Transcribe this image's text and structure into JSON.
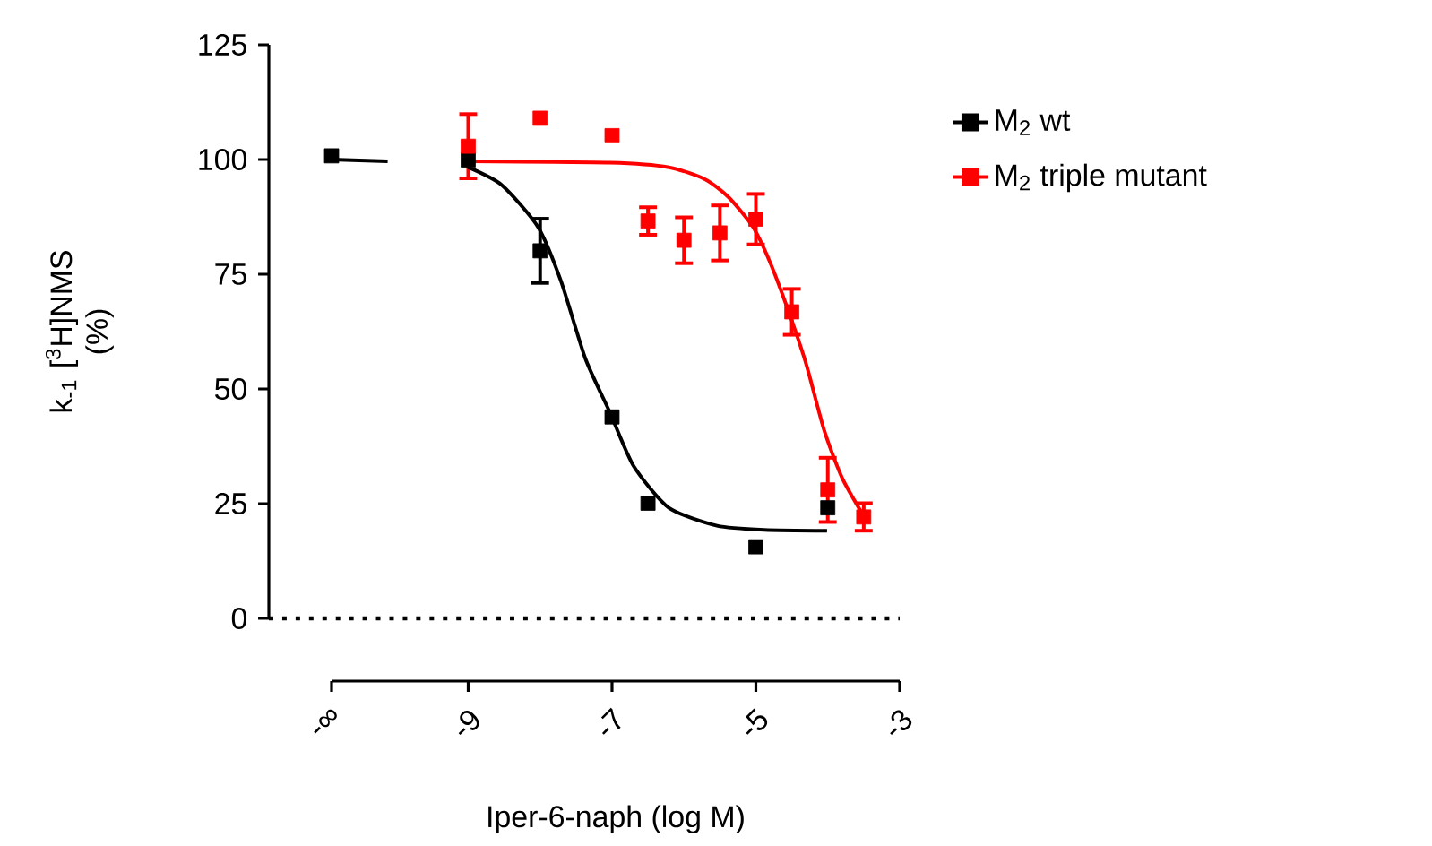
{
  "chart_data": {
    "type": "scatter",
    "xlabel": "Iper-6-naph (log M)",
    "ylabel": "k$_{-1}$ [$^{3}$H]NMS (%)",
    "x": [
      -10.9,
      -9,
      -8,
      -7,
      -6.5,
      -5,
      -4
    ],
    "xlim": [
      -10.9,
      -3
    ],
    "xticks": [
      {
        "value": -10.9,
        "label": "-∞"
      },
      -9,
      -7,
      -5,
      -3
    ],
    "ylim": [
      0,
      125
    ],
    "yticks": [
      0,
      25,
      50,
      75,
      100,
      125
    ],
    "grid": false,
    "legend": "right",
    "marker": "square",
    "series": [
      {
        "name": "M$_{2}$ wt",
        "color": "#000000",
        "values": [
          100.8,
          99.9,
          80.1,
          43.9,
          25.1,
          15.6,
          24.1
        ],
        "errors": [
          null,
          null,
          7,
          null,
          null,
          null,
          null
        ]
      },
      {
        "name": "M$_{2}$ triple mutant",
        "color": "#ff0000",
        "x": [
          -9,
          -8,
          -7,
          -6.5,
          -6,
          -5.5,
          -5,
          -4.5,
          -4,
          -3.5
        ],
        "values": [
          102.9,
          109,
          105.2,
          86.6,
          82.4,
          84,
          87,
          66.8,
          28,
          22.1
        ],
        "errors": [
          7,
          null,
          null,
          3,
          5,
          6,
          5.5,
          5,
          7,
          3
        ]
      },
      {
        "type": "line",
        "color": "#000000",
        "marker": "none",
        "x": [
          -10.9,
          -10.12,
          -9.52,
          -9.0,
          -8.53,
          -8.03,
          -7.71,
          -7.37,
          -7.03,
          -6.7,
          -6.21,
          -5.54,
          -4.88,
          -4.01
        ],
        "values": [
          100,
          99.6,
          null,
          98.3,
          94.4,
          85.3,
          73.5,
          56.6,
          44.9,
          33.2,
          24.1,
          20.2,
          19.3,
          19.1
        ]
      },
      {
        "type": "line",
        "color": "#ff0000",
        "marker": "none",
        "x": [
          -9,
          -7.03,
          -6.21,
          -5.71,
          -5.38,
          -5.04,
          -4.8,
          -4.55,
          -4.3,
          -4.05,
          -3.8,
          -3.47
        ],
        "values": [
          99.6,
          99.3,
          98.3,
          95.7,
          91.8,
          85.3,
          77.5,
          67.1,
          55.4,
          41,
          30.6,
          21.5
        ]
      }
    ],
    "ref_lines": [
      {
        "axis": "y",
        "value": 0,
        "line_style": "dotted",
        "color": "#000000"
      }
    ]
  }
}
